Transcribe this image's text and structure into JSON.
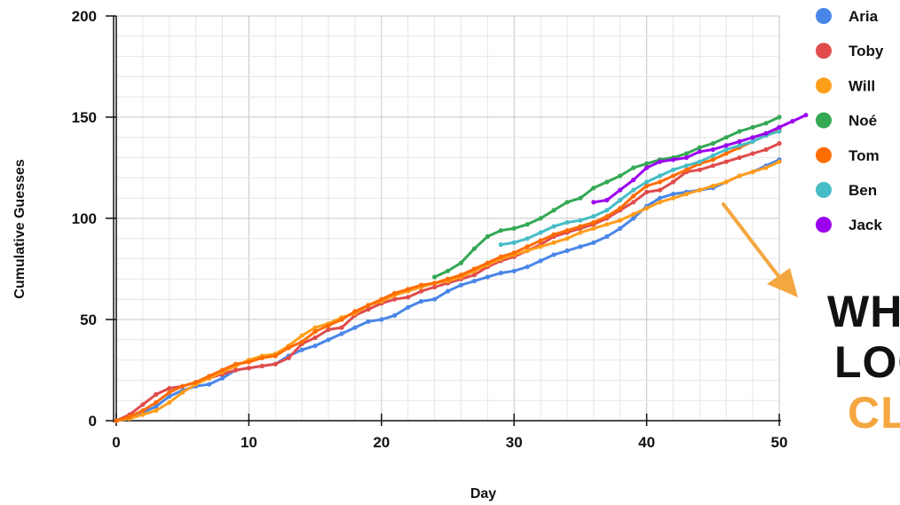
{
  "chart_data": {
    "type": "line",
    "xlabel": "Day",
    "ylabel": "Cumulative Guesses",
    "xlim": [
      0,
      50
    ],
    "ylim": [
      0,
      200
    ],
    "xticks": [
      0,
      10,
      20,
      30,
      40,
      50
    ],
    "yticks": [
      0,
      50,
      100,
      150,
      200
    ],
    "grid": true,
    "legend_position": "right",
    "series": [
      {
        "name": "Aria",
        "color": "#4a86e8",
        "x_start": 0,
        "values": [
          0,
          2,
          4,
          7,
          12,
          15,
          17,
          18,
          21,
          25,
          26,
          27,
          28,
          32,
          35,
          37,
          40,
          43,
          46,
          49,
          50,
          52,
          56,
          59,
          60,
          64,
          67,
          69,
          71,
          73,
          74,
          76,
          79,
          82,
          84,
          86,
          88,
          91,
          95,
          100,
          106,
          110,
          112,
          113,
          114,
          115,
          118,
          121,
          123,
          126,
          129
        ]
      },
      {
        "name": "Toby",
        "color": "#e04c4c",
        "x_start": 0,
        "values": [
          0,
          3,
          8,
          13,
          16,
          17,
          19,
          21,
          23,
          25,
          26,
          27,
          28,
          31,
          38,
          41,
          45,
          46,
          52,
          55,
          58,
          60,
          61,
          64,
          66,
          68,
          70,
          72,
          76,
          79,
          81,
          84,
          87,
          91,
          93,
          95,
          97,
          100,
          104,
          108,
          113,
          114,
          118,
          123,
          124,
          126,
          128,
          130,
          132,
          134,
          137
        ]
      },
      {
        "name": "Will",
        "color": "#ff9e1b",
        "x_start": 0,
        "values": [
          0,
          1,
          3,
          5,
          9,
          14,
          18,
          21,
          24,
          27,
          30,
          32,
          33,
          37,
          42,
          46,
          48,
          51,
          53,
          57,
          59,
          62,
          64,
          66,
          68,
          69,
          71,
          74,
          77,
          80,
          82,
          84,
          86,
          88,
          90,
          93,
          95,
          97,
          99,
          102,
          105,
          108,
          110,
          112,
          114,
          116,
          118,
          121,
          123,
          125,
          128
        ]
      },
      {
        "name": "Noé",
        "color": "#34a853",
        "x_start": 24,
        "values": [
          71,
          74,
          78,
          85,
          91,
          94,
          95,
          97,
          100,
          104,
          108,
          110,
          115,
          118,
          121,
          125,
          127,
          129,
          130,
          132,
          135,
          137,
          140,
          143,
          145,
          147,
          150
        ]
      },
      {
        "name": "Tom",
        "color": "#ff6d01",
        "x_start": 0,
        "values": [
          0,
          2,
          5,
          9,
          14,
          17,
          19,
          22,
          25,
          28,
          29,
          31,
          32,
          36,
          39,
          44,
          47,
          50,
          54,
          57,
          60,
          63,
          65,
          67,
          68,
          70,
          72,
          75,
          78,
          81,
          83,
          86,
          89,
          92,
          94,
          96,
          98,
          101,
          105,
          111,
          116,
          118,
          121,
          124,
          127,
          129,
          132,
          135,
          138,
          141,
          144
        ]
      },
      {
        "name": "Ben",
        "color": "#46bdc6",
        "x_start": 29,
        "values": [
          87,
          88,
          90,
          93,
          96,
          98,
          99,
          101,
          104,
          109,
          114,
          118,
          121,
          124,
          126,
          128,
          131,
          134,
          136,
          138,
          141,
          143
        ]
      },
      {
        "name": "Jack",
        "color": "#9b00ef",
        "x_start": 36,
        "values": [
          108,
          109,
          114,
          119,
          125,
          128,
          129,
          130,
          133,
          134,
          136,
          138,
          140,
          142,
          145,
          148,
          151
        ]
      }
    ]
  },
  "callout": {
    "line1": "WHA",
    "line2": "LOO",
    "line3": "CL"
  },
  "colors": {
    "arrow": "#f4a640",
    "callout_text": "#111111",
    "callout_accent": "#f4a640"
  }
}
